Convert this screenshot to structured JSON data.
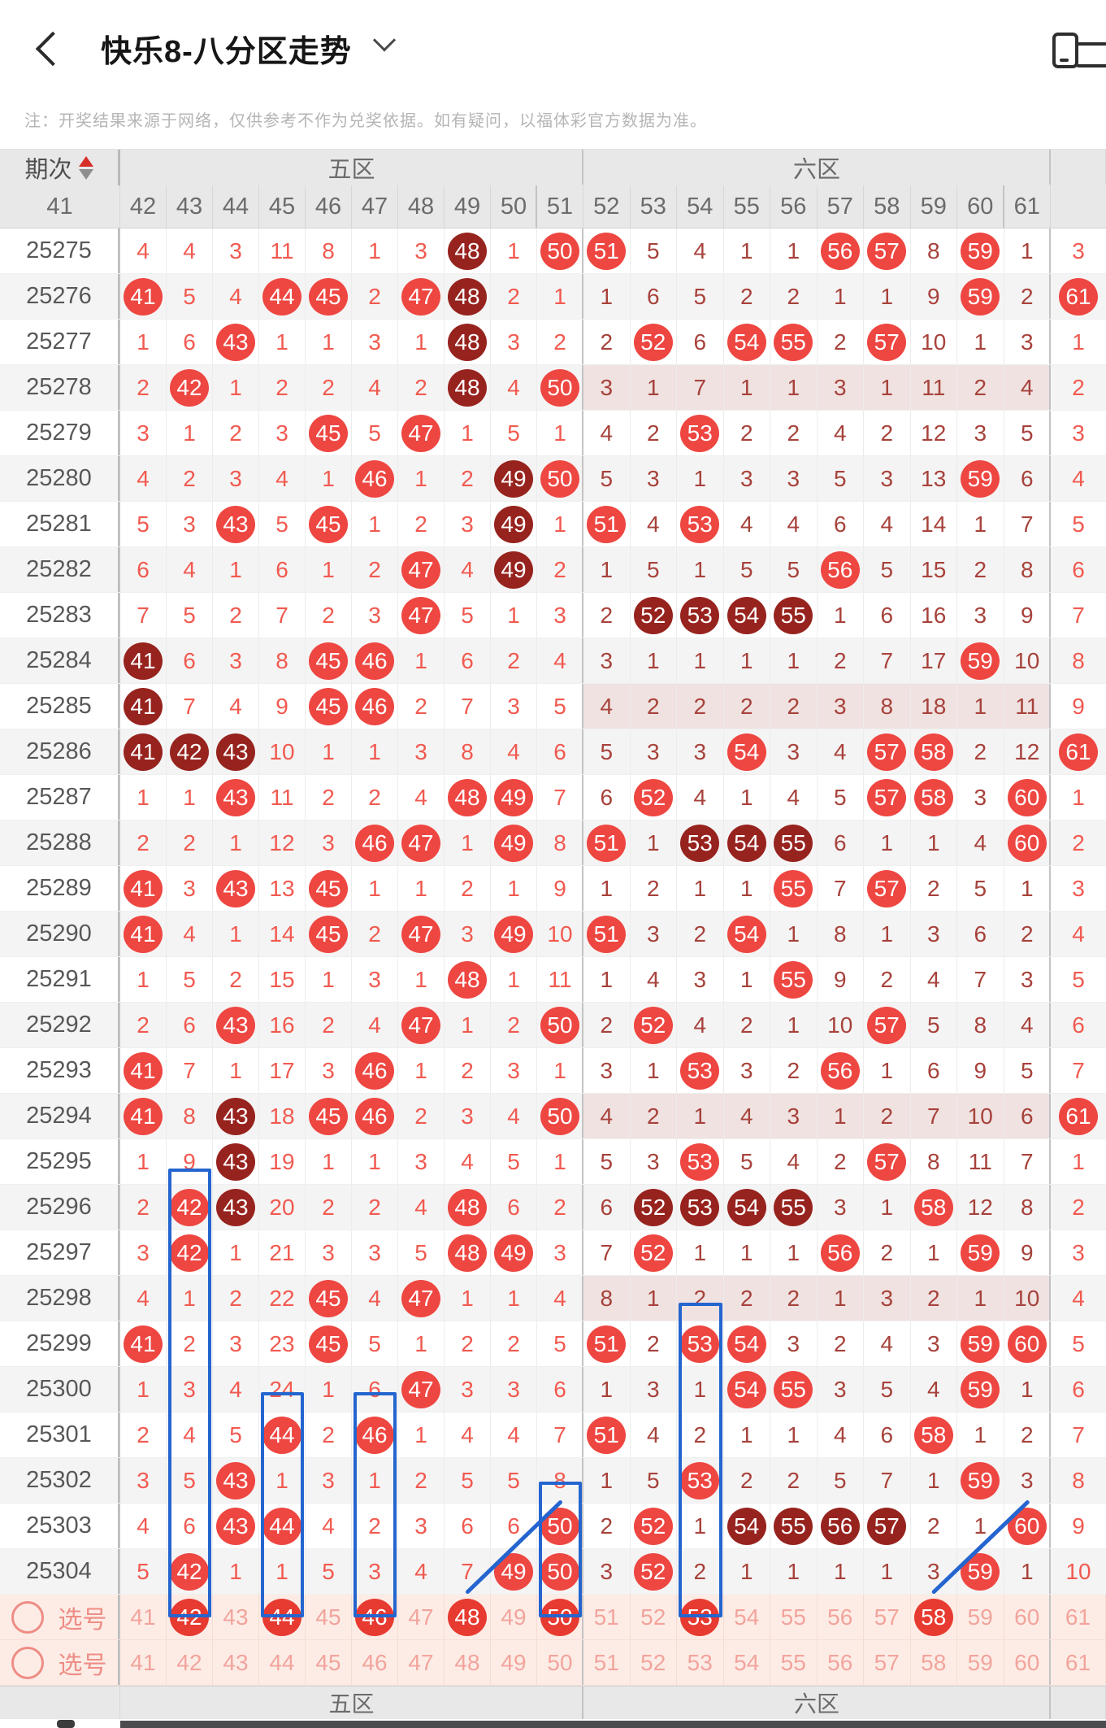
{
  "appbar": {
    "title": "快乐8-八分区走势",
    "back_icon": "chevron-left",
    "dropdown_icon": "chevron-down",
    "screens_icon": "multi-screen"
  },
  "note": "注：开奖结果来源于网络，仅供参考不作为兑奖依据。如有疑问，以福体彩官方数据为准。",
  "table": {
    "period_header": "期次",
    "zones": [
      {
        "label": "五区",
        "cols": [
          41,
          42,
          43,
          44,
          45,
          46,
          47,
          48,
          49,
          50
        ]
      },
      {
        "label": "六区",
        "cols": [
          51,
          52,
          53,
          54,
          55,
          56,
          57,
          58,
          59,
          60
        ]
      },
      {
        "label": "",
        "cols": [
          61
        ]
      }
    ],
    "footer": {
      "zone5": "五区",
      "zone6": "六区",
      "zone7": ""
    },
    "legend": {
      "hit_marker": "red-circle",
      "repeat_or_run_marker": "dark-red-circle",
      "no_hit_zone_marker": "pink-cells"
    },
    "rows": [
      {
        "period": "25275",
        "cells": [
          "4",
          "4",
          "3",
          "11",
          "8",
          "1",
          "3",
          "#48",
          "1",
          "*50",
          "*51",
          "5",
          "4",
          "1",
          "1",
          "*56",
          "*57",
          "8",
          "*59",
          "1",
          "3"
        ],
        "pink_zone6": false
      },
      {
        "period": "25276",
        "cells": [
          "*41",
          "5",
          "4",
          "*44",
          "*45",
          "2",
          "*47",
          "#48",
          "2",
          "1",
          "1",
          "6",
          "5",
          "2",
          "2",
          "1",
          "1",
          "9",
          "*59",
          "2",
          "*61"
        ],
        "pink_zone6": false
      },
      {
        "period": "25277",
        "cells": [
          "1",
          "6",
          "*43",
          "1",
          "1",
          "3",
          "1",
          "#48",
          "3",
          "2",
          "2",
          "*52",
          "6",
          "*54",
          "*55",
          "2",
          "*57",
          "10",
          "1",
          "3",
          "1"
        ],
        "pink_zone6": false
      },
      {
        "period": "25278",
        "cells": [
          "2",
          "*42",
          "1",
          "2",
          "2",
          "4",
          "2",
          "#48",
          "4",
          "*50",
          "3",
          "1",
          "7",
          "1",
          "1",
          "3",
          "1",
          "11",
          "2",
          "4",
          "2"
        ],
        "pink_zone6": true
      },
      {
        "period": "25279",
        "cells": [
          "3",
          "1",
          "2",
          "3",
          "*45",
          "5",
          "*47",
          "1",
          "5",
          "1",
          "4",
          "2",
          "*53",
          "2",
          "2",
          "4",
          "2",
          "12",
          "3",
          "5",
          "3"
        ],
        "pink_zone6": false
      },
      {
        "period": "25280",
        "cells": [
          "4",
          "2",
          "3",
          "4",
          "1",
          "*46",
          "1",
          "2",
          "#49",
          "*50",
          "5",
          "3",
          "1",
          "3",
          "3",
          "5",
          "3",
          "13",
          "*59",
          "6",
          "4"
        ],
        "pink_zone6": false
      },
      {
        "period": "25281",
        "cells": [
          "5",
          "3",
          "*43",
          "5",
          "*45",
          "1",
          "2",
          "3",
          "#49",
          "1",
          "*51",
          "4",
          "*53",
          "4",
          "4",
          "6",
          "4",
          "14",
          "1",
          "7",
          "5"
        ],
        "pink_zone6": false
      },
      {
        "period": "25282",
        "cells": [
          "6",
          "4",
          "1",
          "6",
          "1",
          "2",
          "*47",
          "4",
          "#49",
          "2",
          "1",
          "5",
          "1",
          "5",
          "5",
          "*56",
          "5",
          "15",
          "2",
          "8",
          "6"
        ],
        "pink_zone6": false
      },
      {
        "period": "25283",
        "cells": [
          "7",
          "5",
          "2",
          "7",
          "2",
          "3",
          "*47",
          "5",
          "1",
          "3",
          "2",
          "#52",
          "#53",
          "#54",
          "#55",
          "1",
          "6",
          "16",
          "3",
          "9",
          "7"
        ],
        "pink_zone6": false
      },
      {
        "period": "25284",
        "cells": [
          "#41",
          "6",
          "3",
          "8",
          "*45",
          "*46",
          "1",
          "6",
          "2",
          "4",
          "3",
          "1",
          "1",
          "1",
          "1",
          "2",
          "7",
          "17",
          "*59",
          "10",
          "8"
        ],
        "pink_zone6": false
      },
      {
        "period": "25285",
        "cells": [
          "#41",
          "7",
          "4",
          "9",
          "*45",
          "*46",
          "2",
          "7",
          "3",
          "5",
          "4",
          "2",
          "2",
          "2",
          "2",
          "3",
          "8",
          "18",
          "1",
          "11",
          "9"
        ],
        "pink_zone6": true
      },
      {
        "period": "25286",
        "cells": [
          "#41",
          "#42",
          "#43",
          "10",
          "1",
          "1",
          "3",
          "8",
          "4",
          "6",
          "5",
          "3",
          "3",
          "*54",
          "3",
          "4",
          "*57",
          "*58",
          "2",
          "12",
          "*61"
        ],
        "pink_zone6": false
      },
      {
        "period": "25287",
        "cells": [
          "1",
          "1",
          "*43",
          "11",
          "2",
          "2",
          "4",
          "*48",
          "*49",
          "7",
          "6",
          "*52",
          "4",
          "1",
          "4",
          "5",
          "*57",
          "*58",
          "3",
          "*60",
          "1"
        ],
        "pink_zone6": false
      },
      {
        "period": "25288",
        "cells": [
          "2",
          "2",
          "1",
          "12",
          "3",
          "*46",
          "*47",
          "1",
          "*49",
          "8",
          "*51",
          "1",
          "#53",
          "#54",
          "#55",
          "6",
          "1",
          "1",
          "4",
          "*60",
          "2"
        ],
        "pink_zone6": false
      },
      {
        "period": "25289",
        "cells": [
          "*41",
          "3",
          "*43",
          "13",
          "*45",
          "1",
          "1",
          "2",
          "1",
          "9",
          "1",
          "2",
          "1",
          "1",
          "*55",
          "7",
          "*57",
          "2",
          "5",
          "1",
          "3"
        ],
        "pink_zone6": false
      },
      {
        "period": "25290",
        "cells": [
          "*41",
          "4",
          "1",
          "14",
          "*45",
          "2",
          "*47",
          "3",
          "*49",
          "10",
          "*51",
          "3",
          "2",
          "*54",
          "1",
          "8",
          "1",
          "3",
          "6",
          "2",
          "4"
        ],
        "pink_zone6": false
      },
      {
        "period": "25291",
        "cells": [
          "1",
          "5",
          "2",
          "15",
          "1",
          "3",
          "1",
          "*48",
          "1",
          "11",
          "1",
          "4",
          "3",
          "1",
          "*55",
          "9",
          "2",
          "4",
          "7",
          "3",
          "5"
        ],
        "pink_zone6": false
      },
      {
        "period": "25292",
        "cells": [
          "2",
          "6",
          "*43",
          "16",
          "2",
          "4",
          "*47",
          "1",
          "2",
          "*50",
          "2",
          "*52",
          "4",
          "2",
          "1",
          "10",
          "*57",
          "5",
          "8",
          "4",
          "6"
        ],
        "pink_zone6": false
      },
      {
        "period": "25293",
        "cells": [
          "*41",
          "7",
          "1",
          "17",
          "3",
          "*46",
          "1",
          "2",
          "3",
          "1",
          "3",
          "1",
          "*53",
          "3",
          "2",
          "*56",
          "1",
          "6",
          "9",
          "5",
          "7"
        ],
        "pink_zone6": false
      },
      {
        "period": "25294",
        "cells": [
          "*41",
          "8",
          "#43",
          "18",
          "*45",
          "*46",
          "2",
          "3",
          "4",
          "*50",
          "4",
          "2",
          "1",
          "4",
          "3",
          "1",
          "2",
          "7",
          "10",
          "6",
          "*61"
        ],
        "pink_zone6": true
      },
      {
        "period": "25295",
        "cells": [
          "1",
          "9",
          "#43",
          "19",
          "1",
          "1",
          "3",
          "4",
          "5",
          "1",
          "5",
          "3",
          "*53",
          "5",
          "4",
          "2",
          "*57",
          "8",
          "11",
          "7",
          "1"
        ],
        "pink_zone6": false
      },
      {
        "period": "25296",
        "cells": [
          "2",
          "*42",
          "#43",
          "20",
          "2",
          "2",
          "4",
          "*48",
          "6",
          "2",
          "6",
          "#52",
          "#53",
          "#54",
          "#55",
          "3",
          "1",
          "*58",
          "12",
          "8",
          "2"
        ],
        "pink_zone6": false
      },
      {
        "period": "25297",
        "cells": [
          "3",
          "*42",
          "1",
          "21",
          "3",
          "3",
          "5",
          "*48",
          "*49",
          "3",
          "7",
          "*52",
          "1",
          "1",
          "1",
          "*56",
          "2",
          "1",
          "*59",
          "9",
          "3"
        ],
        "pink_zone6": false
      },
      {
        "period": "25298",
        "cells": [
          "4",
          "1",
          "2",
          "22",
          "*45",
          "4",
          "*47",
          "1",
          "1",
          "4",
          "8",
          "1",
          "2",
          "2",
          "2",
          "1",
          "3",
          "2",
          "1",
          "10",
          "4"
        ],
        "pink_zone6": true
      },
      {
        "period": "25299",
        "cells": [
          "*41",
          "2",
          "3",
          "23",
          "*45",
          "5",
          "1",
          "2",
          "2",
          "5",
          "*51",
          "2",
          "*53",
          "*54",
          "3",
          "2",
          "4",
          "3",
          "*59",
          "*60",
          "5"
        ],
        "pink_zone6": false
      },
      {
        "period": "25300",
        "cells": [
          "1",
          "3",
          "4",
          "24",
          "1",
          "6",
          "*47",
          "3",
          "3",
          "6",
          "1",
          "3",
          "1",
          "*54",
          "*55",
          "3",
          "5",
          "4",
          "*59",
          "1",
          "6"
        ],
        "pink_zone6": false
      },
      {
        "period": "25301",
        "cells": [
          "2",
          "4",
          "5",
          "*44",
          "2",
          "*46",
          "1",
          "4",
          "4",
          "7",
          "*51",
          "4",
          "2",
          "1",
          "1",
          "4",
          "6",
          "*58",
          "1",
          "2",
          "7"
        ],
        "pink_zone6": false
      },
      {
        "period": "25302",
        "cells": [
          "3",
          "5",
          "*43",
          "1",
          "3",
          "1",
          "2",
          "5",
          "5",
          "8",
          "1",
          "5",
          "*53",
          "2",
          "2",
          "5",
          "7",
          "1",
          "*59",
          "3",
          "8"
        ],
        "pink_zone6": false
      },
      {
        "period": "25303",
        "cells": [
          "4",
          "6",
          "*43",
          "*44",
          "4",
          "2",
          "3",
          "6",
          "6",
          "*50",
          "2",
          "*52",
          "1",
          "#54",
          "#55",
          "#56",
          "#57",
          "2",
          "1",
          "*60",
          "9"
        ],
        "pink_zone6": false
      },
      {
        "period": "25304",
        "cells": [
          "5",
          "*42",
          "1",
          "1",
          "5",
          "3",
          "4",
          "7",
          "*49",
          "*50",
          "3",
          "*52",
          "2",
          "1",
          "1",
          "1",
          "1",
          "3",
          "*59",
          "1",
          "10"
        ],
        "pink_zone6": false
      }
    ],
    "pick_rows": [
      {
        "label": "选号",
        "cells": [
          "41",
          "*42",
          "43",
          "*44",
          "45",
          "*46",
          "47",
          "*48",
          "49",
          "*50",
          "51",
          "52",
          "*53",
          "54",
          "55",
          "56",
          "57",
          "*58",
          "59",
          "60",
          "61"
        ]
      },
      {
        "label": "选号",
        "cells": [
          "41",
          "42",
          "43",
          "44",
          "45",
          "46",
          "47",
          "48",
          "49",
          "50",
          "51",
          "52",
          "53",
          "54",
          "55",
          "56",
          "57",
          "58",
          "59",
          "60",
          "61"
        ]
      }
    ],
    "annotations": {
      "selection_rects": [
        {
          "col": 42,
          "from_period": "25296"
        },
        {
          "col": 44,
          "from_period": "25301"
        },
        {
          "col": 46,
          "from_period": "25301"
        },
        {
          "col": 50,
          "from_period": "25303"
        },
        {
          "col": 53,
          "from_period": "25299"
        }
      ],
      "trend_lines": [
        {
          "from_col": 48,
          "from_row": "pick1",
          "to_col": 50,
          "to_period": "25303"
        },
        {
          "from_col": 58,
          "from_row": "pick1",
          "to_col": 60,
          "to_period": "25303"
        }
      ]
    }
  },
  "colors": {
    "hit_circle": "#ee4641",
    "dark_circle": "#97231e",
    "zone5_text": "#f15a50",
    "zone6_text": "#a7423b",
    "pink_zone_bg": "#f0e2e1",
    "pick_row_bg": "#fdece6",
    "pick_text": "#f2a49c",
    "annotation_blue": "#2465cf",
    "header_bg": "#e9e8e8",
    "stripe_bg": "#f5f4f4"
  }
}
